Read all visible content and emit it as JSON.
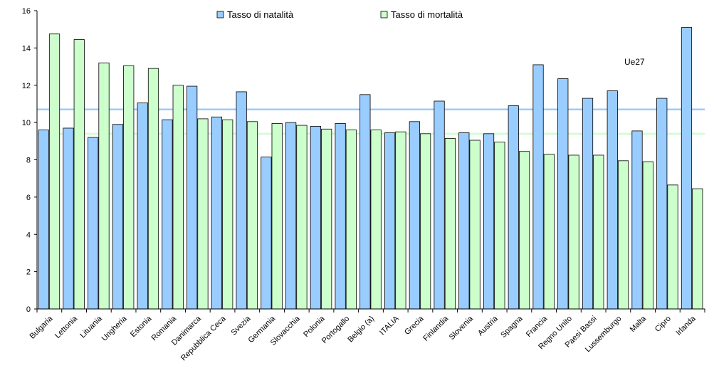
{
  "chart_data": {
    "type": "bar",
    "categories": [
      "Bulgaria",
      "Lettonia",
      "Lituania",
      "Ungheria",
      "Estonia",
      "Romania",
      "Danimarca",
      "Repubblica Ceca",
      "Svezia",
      "Germania",
      "Slovacchia",
      "Polonia",
      "Portogallo",
      "Belgio (a)",
      "ITALIA",
      "Grecia",
      "Finlandia",
      "Slovenia",
      "Austria",
      "Spagna",
      "Francia",
      "Regno Unito",
      "Paesi Bassi",
      "Lussemburgo",
      "Malta",
      "Cipro",
      "Irlanda"
    ],
    "series": [
      {
        "name": "Tasso di natalità",
        "color": "#99ccff",
        "values": [
          9.6,
          9.7,
          9.2,
          9.9,
          11.05,
          10.15,
          11.95,
          10.3,
          11.65,
          8.15,
          10.0,
          9.8,
          9.95,
          11.5,
          9.45,
          10.05,
          11.15,
          9.45,
          9.4,
          10.9,
          13.1,
          12.35,
          11.3,
          11.7,
          9.55,
          11.3,
          15.1
        ]
      },
      {
        "name": "Tasso di mortalità",
        "color": "#ccffcc",
        "values": [
          14.75,
          14.45,
          13.2,
          13.05,
          12.9,
          12.0,
          10.2,
          10.15,
          10.05,
          9.95,
          9.85,
          9.65,
          9.6,
          9.6,
          9.5,
          9.4,
          9.15,
          9.05,
          8.95,
          8.45,
          8.3,
          8.25,
          8.25,
          7.95,
          7.9,
          6.65,
          6.45
        ]
      }
    ],
    "reference_lines": [
      {
        "name": "natalità Ue27",
        "value": 10.7,
        "color": "#99ccff"
      },
      {
        "name": "mortalità Ue27",
        "value": 9.4,
        "color": "#ccffcc"
      }
    ],
    "annotation": "Ue27",
    "ylim": [
      0,
      16
    ],
    "y_ticks": [
      0,
      2,
      4,
      6,
      8,
      10,
      12,
      14,
      16
    ],
    "legend_position": "top-center",
    "grid": false
  }
}
